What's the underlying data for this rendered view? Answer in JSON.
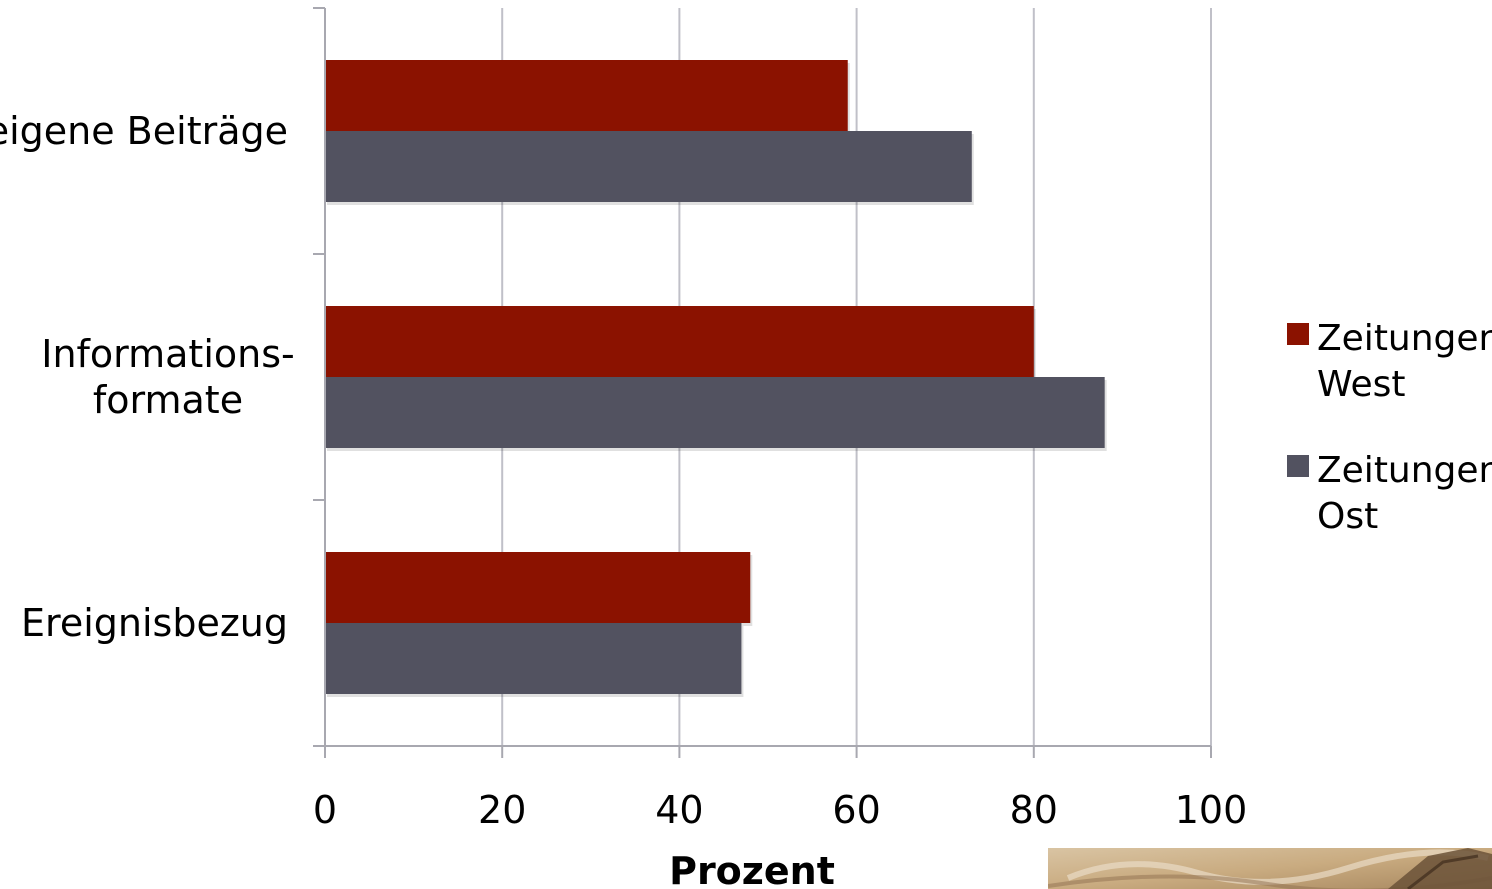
{
  "chart_data": {
    "type": "bar",
    "orientation": "horizontal",
    "categories": [
      "eigene Beiträge",
      "Informations-formate",
      "Ereignisbezug"
    ],
    "series": [
      {
        "name": "Zeitungen West",
        "color": "#8B1200",
        "values": [
          59,
          80,
          48
        ]
      },
      {
        "name": "Zeitungen Ost",
        "color": "#525260",
        "values": [
          73,
          88,
          47
        ]
      }
    ],
    "xlabel": "Prozent",
    "ylabel": "",
    "xlim": [
      0,
      100
    ],
    "xticks": [
      0,
      20,
      40,
      60,
      80,
      100
    ],
    "grid": true,
    "legend_position": "right"
  },
  "colors": {
    "grid": "#C0C0C8",
    "axis": "#A8A8B0"
  }
}
